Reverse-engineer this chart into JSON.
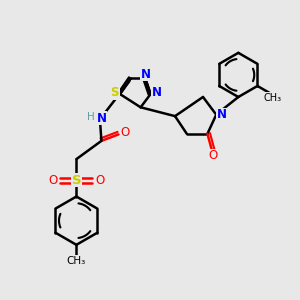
{
  "bg_color": "#e8e8e8",
  "atom_colors": {
    "N": "#0000ff",
    "S": "#cccc00",
    "O": "#ff0000",
    "C": "#000000",
    "H": "#5f9ea0"
  },
  "bond_color": "#000000",
  "bond_width": 1.8,
  "fig_w": 3.0,
  "fig_h": 3.0,
  "dpi": 100
}
